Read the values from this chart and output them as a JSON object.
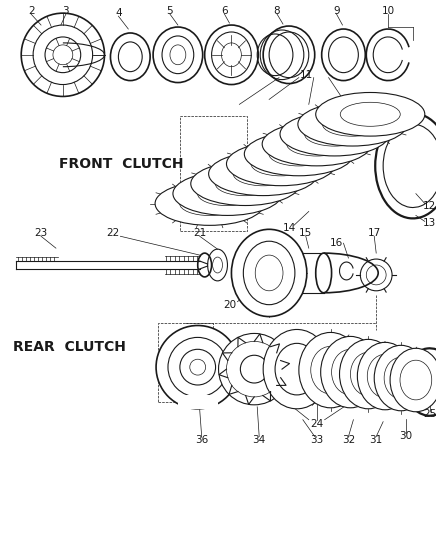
{
  "background_color": "#ffffff",
  "line_color": "#1a1a1a",
  "parts": {
    "front_clutch_label": "FRONT  CLUTCH",
    "rear_clutch_label": "REAR  CLUTCH"
  },
  "font_size_labels": 7.5
}
